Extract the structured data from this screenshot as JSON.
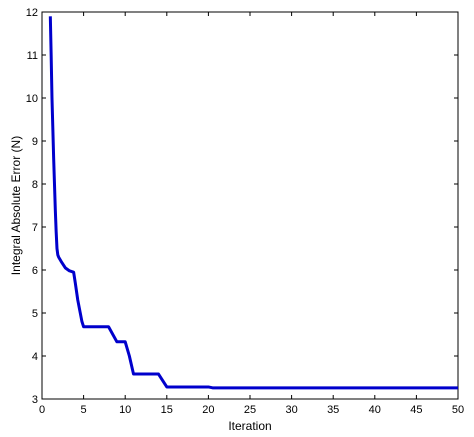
{
  "chart_data": {
    "type": "line",
    "title": "",
    "xlabel": "Iteration",
    "ylabel": "Integral Absolute Error (N)",
    "xlim": [
      0,
      50
    ],
    "ylim": [
      3,
      12
    ],
    "xticks": [
      0,
      5,
      10,
      15,
      20,
      25,
      30,
      35,
      40,
      45,
      50
    ],
    "yticks": [
      3,
      4,
      5,
      6,
      7,
      8,
      9,
      10,
      11,
      12
    ],
    "grid": false,
    "legend": "none",
    "series": [
      {
        "color": "#0000cc",
        "x": [
          1,
          1.1,
          1.2,
          1.3,
          1.4,
          1.5,
          1.6,
          1.7,
          1.8,
          1.9,
          2,
          2.3,
          2.8,
          3.3,
          3.8,
          4,
          4.3,
          4.6,
          4.8,
          5,
          8,
          9,
          10,
          10.5,
          11,
          14,
          15,
          20,
          20.5,
          50
        ],
        "y": [
          11.9,
          11.0,
          10.0,
          9.3,
          8.6,
          8.0,
          7.4,
          6.9,
          6.5,
          6.35,
          6.3,
          6.2,
          6.05,
          5.98,
          5.95,
          5.7,
          5.3,
          5.0,
          4.8,
          4.68,
          4.68,
          4.33,
          4.33,
          4.0,
          3.58,
          3.58,
          3.28,
          3.28,
          3.26,
          3.26
        ]
      }
    ]
  }
}
